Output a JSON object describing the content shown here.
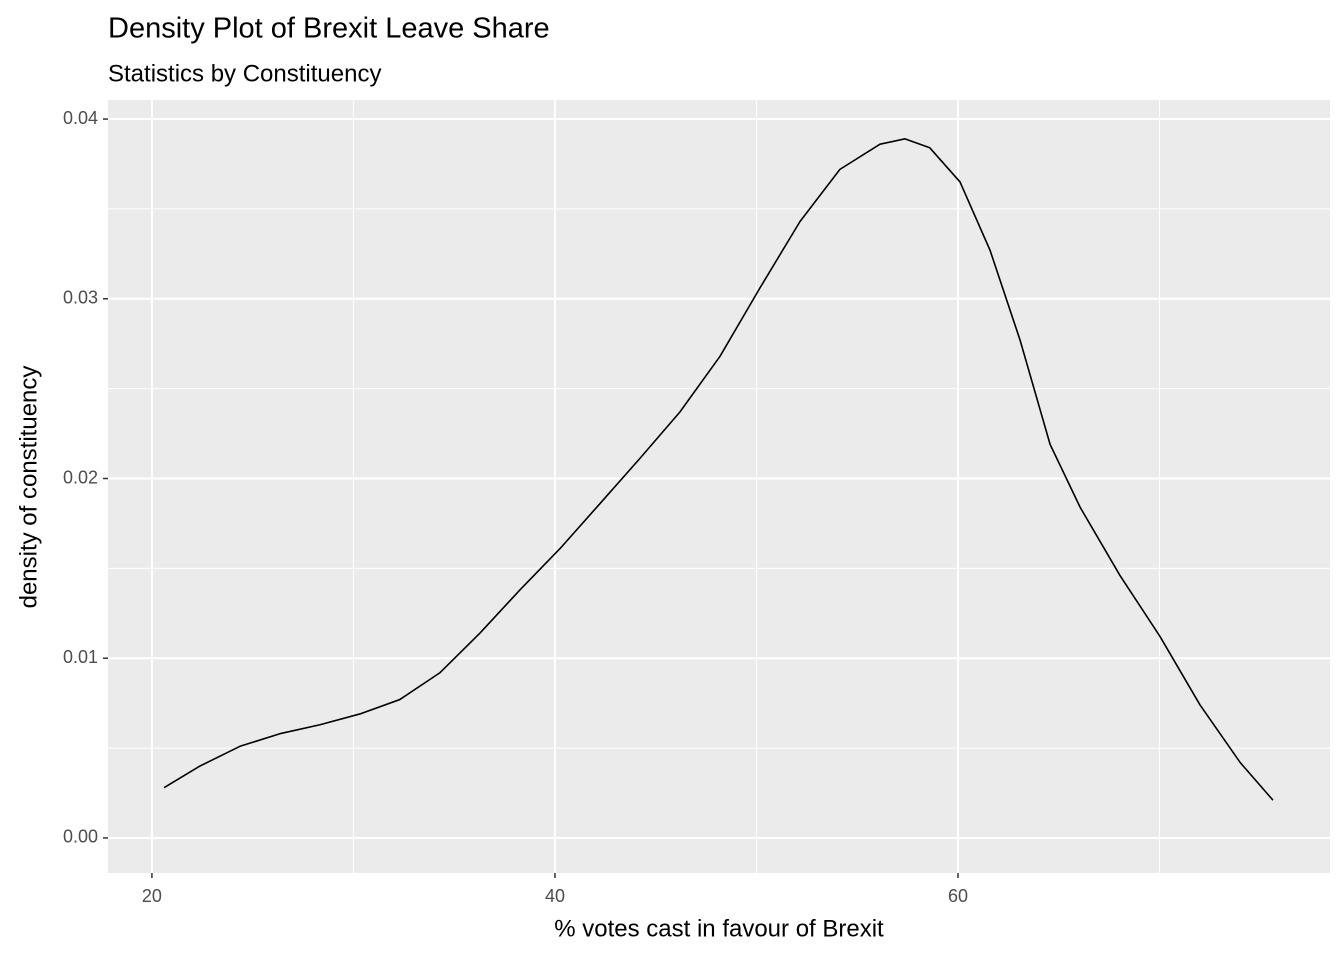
{
  "chart_data": {
    "type": "line",
    "title": "Density Plot of Brexit Leave Share",
    "subtitle": "Statistics by Constituency",
    "x_label": "% votes cast in favour of Brexit",
    "y_label": "density of constituency",
    "x": [
      20.6,
      22.38,
      24.37,
      26.35,
      28.34,
      30.32,
      32.3,
      34.3,
      36.28,
      38.26,
      40.25,
      42.23,
      44.2,
      46.2,
      48.19,
      50.17,
      52.16,
      54.14,
      56.13,
      57.37,
      58.6,
      60.1,
      61.59,
      63.08,
      64.57,
      66.06,
      68.04,
      70.03,
      72.01,
      74.0,
      75.63
    ],
    "series": [
      {
        "color": "#000000",
        "values": [
          0.0028,
          0.004,
          0.0051,
          0.0058,
          0.0063,
          0.0069,
          0.0077,
          0.0092,
          0.0114,
          0.0138,
          0.0161,
          0.0186,
          0.0211,
          0.0237,
          0.0268,
          0.0306,
          0.0343,
          0.0372,
          0.0386,
          0.0389,
          0.0384,
          0.0365,
          0.0327,
          0.0277,
          0.0219,
          0.0184,
          0.0146,
          0.0112,
          0.0074,
          0.0042,
          0.0021
        ]
      }
    ],
    "xlim": [
      17.82,
      78.46
    ],
    "ylim": [
      -0.00195,
      0.04106
    ],
    "xticks": [
      20,
      40,
      60
    ],
    "yticks": [
      {
        "value": 0,
        "label": "0.00"
      },
      0.01,
      0.02,
      0.03,
      0.04
    ],
    "grid": true,
    "panel_color": "#EBEBEB"
  }
}
